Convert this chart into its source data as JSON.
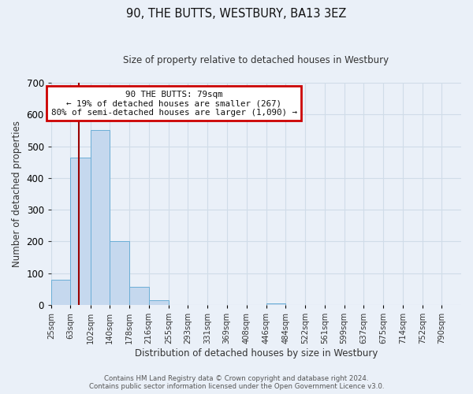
{
  "title": "90, THE BUTTS, WESTBURY, BA13 3EZ",
  "subtitle": "Size of property relative to detached houses in Westbury",
  "xlabel": "Distribution of detached houses by size in Westbury",
  "ylabel": "Number of detached properties",
  "bin_labels": [
    "25sqm",
    "63sqm",
    "102sqm",
    "140sqm",
    "178sqm",
    "216sqm",
    "255sqm",
    "293sqm",
    "331sqm",
    "369sqm",
    "408sqm",
    "446sqm",
    "484sqm",
    "522sqm",
    "561sqm",
    "599sqm",
    "637sqm",
    "675sqm",
    "714sqm",
    "752sqm",
    "790sqm"
  ],
  "bin_edges": [
    25,
    63,
    102,
    140,
    178,
    216,
    255,
    293,
    331,
    369,
    408,
    446,
    484,
    522,
    561,
    599,
    637,
    675,
    714,
    752,
    790
  ],
  "bar_heights": [
    80,
    465,
    550,
    200,
    58,
    15,
    0,
    0,
    0,
    0,
    0,
    5,
    0,
    0,
    0,
    0,
    0,
    0,
    0,
    0
  ],
  "bar_color": "#c5d8ee",
  "bar_edge_color": "#6baed6",
  "property_size": 79,
  "red_line_color": "#990000",
  "annotation_text_line1": "90 THE BUTTS: 79sqm",
  "annotation_text_line2": "← 19% of detached houses are smaller (267)",
  "annotation_text_line3": "80% of semi-detached houses are larger (1,090) →",
  "annotation_box_edge_color": "#cc0000",
  "ylim": [
    0,
    700
  ],
  "grid_color": "#d0dce8",
  "footer_line1": "Contains HM Land Registry data © Crown copyright and database right 2024.",
  "footer_line2": "Contains public sector information licensed under the Open Government Licence v3.0.",
  "background_color": "#eaf0f8"
}
